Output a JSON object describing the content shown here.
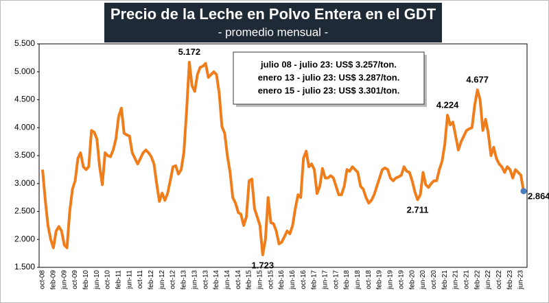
{
  "chart_data": {
    "type": "line",
    "title": "Precio de la Leche en Polvo Entera en el GDT",
    "subtitle": "- promedio mensual -",
    "info_box": [
      "julio 08 - julio 23: US$ 3.257/ton.",
      "enero 13 - julio 23: US$ 3.287/ton.",
      "enero 15 - julio 23: US$ 3.301/ton."
    ],
    "categories": [
      "oct-08",
      null,
      null,
      null,
      "feb-09",
      null,
      null,
      null,
      "jun-09",
      null,
      null,
      null,
      "oct-09",
      null,
      null,
      null,
      "feb-10",
      null,
      null,
      null,
      "jun-10",
      null,
      null,
      null,
      "oct-10",
      null,
      null,
      null,
      "feb-11",
      null,
      null,
      null,
      "jun-11",
      null,
      null,
      null,
      "oct-11",
      null,
      null,
      null,
      "feb-12",
      null,
      null,
      null,
      "jun-12",
      null,
      null,
      null,
      "oct-12",
      null,
      null,
      null,
      "feb-13",
      null,
      null,
      null,
      "jun-13",
      null,
      null,
      null,
      "oct-13",
      null,
      null,
      null,
      "feb-14",
      null,
      null,
      null,
      "jun-14",
      null,
      null,
      null,
      "oct-14",
      null,
      null,
      null,
      "feb-15",
      null,
      null,
      null,
      "jun-15",
      null,
      null,
      null,
      "oct-15",
      null,
      null,
      null,
      "feb-16",
      null,
      null,
      null,
      "jun-16",
      null,
      null,
      null,
      "oct-16",
      null,
      null,
      null,
      "feb-17",
      null,
      null,
      null,
      "jun-17",
      null,
      null,
      null,
      "oct-17",
      null,
      null,
      null,
      "feb-18",
      null,
      null,
      null,
      "jun-18",
      null,
      null,
      null,
      "oct-18",
      null,
      null,
      null,
      "feb-19",
      null,
      null,
      null,
      "jun-19",
      null,
      null,
      null,
      "oct-19",
      null,
      null,
      null,
      "feb-20",
      null,
      null,
      null,
      "jun-20",
      null,
      null,
      null,
      "oct-20",
      null,
      null,
      null,
      "feb-21",
      null,
      null,
      null,
      "jun-21",
      null,
      null,
      null,
      "oct-21",
      null,
      null,
      null,
      "feb-22",
      null,
      null,
      null,
      "jun-22",
      null,
      null,
      null,
      "oct-22",
      null,
      null,
      null,
      "feb-23",
      null,
      null,
      null,
      "jun-23",
      null
    ],
    "values": [
      3250,
      2700,
      2250,
      2000,
      1850,
      2150,
      2230,
      2150,
      1900,
      1850,
      2500,
      2900,
      3050,
      3450,
      3550,
      3300,
      3250,
      3300,
      3950,
      3920,
      3800,
      3300,
      2980,
      3550,
      3500,
      3480,
      3600,
      3800,
      4200,
      4350,
      3900,
      3870,
      3850,
      3550,
      3450,
      3350,
      3450,
      3550,
      3600,
      3550,
      3480,
      3350,
      3000,
      2680,
      2830,
      2700,
      2820,
      3050,
      3300,
      3320,
      3170,
      3250,
      3550,
      4300,
      5172,
      4750,
      4650,
      4950,
      5080,
      5100,
      5150,
      4900,
      4950,
      5000,
      4950,
      4620,
      4020,
      3900,
      3500,
      3200,
      2750,
      2650,
      2480,
      2450,
      2250,
      2400,
      3050,
      3080,
      2550,
      2400,
      2250,
      1723,
      2000,
      2750,
      2300,
      2280,
      2150,
      1920,
      1950,
      2050,
      2150,
      2100,
      2250,
      2550,
      2800,
      2750,
      3450,
      3580,
      3300,
      3350,
      3250,
      2820,
      2950,
      3270,
      3100,
      3100,
      3140,
      3100,
      2950,
      2800,
      2800,
      2950,
      3250,
      3220,
      3300,
      3250,
      3200,
      2950,
      2900,
      2750,
      2650,
      2700,
      2800,
      2950,
      3100,
      3250,
      3280,
      3250,
      3100,
      3050,
      3100,
      3120,
      3150,
      3300,
      3220,
      3200,
      3050,
      2850,
      2711,
      2800,
      3200,
      2980,
      2930,
      3000,
      3050,
      3050,
      3250,
      3400,
      3700,
      4224,
      4050,
      4100,
      3850,
      3600,
      3750,
      3850,
      3950,
      3980,
      4000,
      4400,
      4677,
      4500,
      3950,
      4150,
      3900,
      3500,
      3650,
      3450,
      3350,
      3300,
      3200,
      3300,
      3250,
      3100,
      3250,
      3200,
      3150,
      2864
    ],
    "value_labels": [
      null,
      null,
      null,
      null,
      null,
      null,
      null,
      null,
      null,
      null,
      null,
      null,
      null,
      null,
      null,
      null,
      null,
      null,
      null,
      null,
      null,
      null,
      null,
      null,
      null,
      null,
      null,
      null,
      null,
      null,
      null,
      null,
      null,
      null,
      null,
      null,
      null,
      null,
      null,
      null,
      null,
      null,
      null,
      null,
      null,
      null,
      null,
      null,
      null,
      null,
      null,
      null,
      null,
      null,
      "5.172",
      null,
      null,
      null,
      null,
      null,
      null,
      null,
      null,
      null,
      null,
      null,
      null,
      null,
      null,
      null,
      null,
      null,
      null,
      null,
      null,
      null,
      null,
      null,
      null,
      null,
      null,
      "1.723",
      null,
      null,
      null,
      null,
      null,
      null,
      null,
      null,
      null,
      null,
      null,
      null,
      null,
      null,
      null,
      null,
      null,
      null,
      null,
      null,
      null,
      null,
      null,
      null,
      null,
      null,
      null,
      null,
      null,
      null,
      null,
      null,
      null,
      null,
      null,
      null,
      null,
      null,
      null,
      null,
      null,
      null,
      null,
      null,
      null,
      null,
      null,
      null,
      null,
      null,
      null,
      null,
      null,
      null,
      null,
      null,
      "2.711",
      null,
      null,
      null,
      null,
      null,
      null,
      null,
      null,
      null,
      null,
      "4.224",
      null,
      null,
      null,
      null,
      null,
      null,
      null,
      null,
      null,
      null,
      "4.677",
      null,
      null,
      null,
      null,
      null,
      null,
      null,
      null,
      null,
      null,
      null,
      null,
      null,
      null,
      null,
      null,
      "2.864"
    ],
    "color": "#f07d1b",
    "last_point_color": "#4a7cc0",
    "ylim": [
      1500,
      5500
    ],
    "yticks": [
      {
        "value": 1500,
        "label": "1.500"
      },
      {
        "value": 2000,
        "label": "2.000"
      },
      {
        "value": 2500,
        "label": "2.500"
      },
      {
        "value": 3000,
        "label": "3.000"
      },
      {
        "value": 3500,
        "label": "3.500"
      },
      {
        "value": 4000,
        "label": "4.000"
      },
      {
        "value": 4500,
        "label": "4.500"
      },
      {
        "value": 5000,
        "label": "5.000"
      },
      {
        "value": 5500,
        "label": "5.500"
      }
    ],
    "grid": false
  }
}
